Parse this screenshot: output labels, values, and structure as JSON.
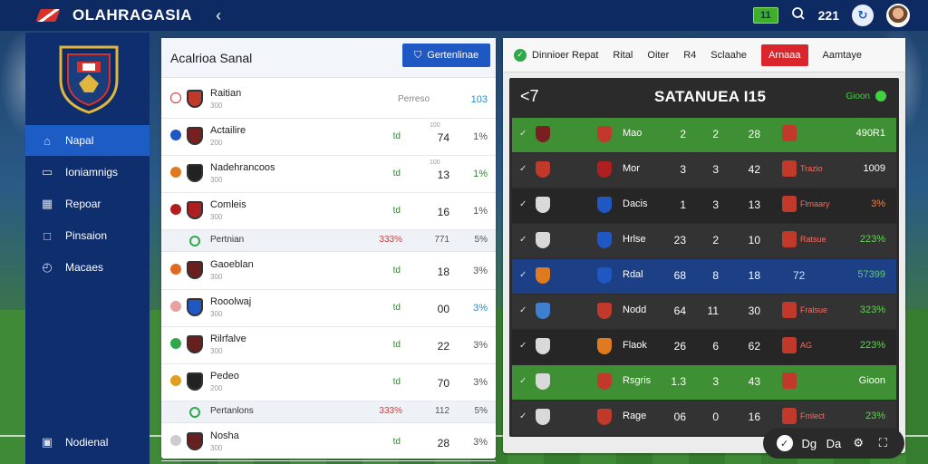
{
  "header": {
    "app_title": "OLAHRAGASIA",
    "back_glyph": "‹",
    "badge": "11",
    "search_icon": "search-icon",
    "count": "221"
  },
  "sidebar": {
    "items": [
      {
        "label": "Napal",
        "icon": "home-icon",
        "active": true
      },
      {
        "label": "Ioniamnigs",
        "icon": "window-icon"
      },
      {
        "label": "Repoar",
        "icon": "grid-icon"
      },
      {
        "label": "Pinsaion",
        "icon": "square-icon"
      },
      {
        "label": "Macaes",
        "icon": "globe-icon"
      }
    ],
    "bottom_item": {
      "label": "Nodienal",
      "icon": "settings-icon"
    }
  },
  "middle": {
    "title": "Acalrioa Sanal",
    "button_label": "Gertenlinae",
    "rows": [
      {
        "name": "Raitian",
        "sub": "300",
        "c1": "",
        "c2top": "",
        "c2": "Perreso",
        "c3": "103",
        "flag": "#ffffff",
        "crest": "#c0392b",
        "c3color": "#2b8ac2"
      },
      {
        "name": "Actailire",
        "sub": "200",
        "c1": "td",
        "c2top": "100",
        "c2": "74",
        "c3": "1%",
        "flag": "#1f57c3",
        "crest": "#7a1f1f"
      },
      {
        "name": "Nadehrancoos",
        "sub": "300",
        "c1": "td",
        "c2top": "100",
        "c2": "13",
        "c3": "1%",
        "flag": "#e07a1f",
        "crest": "#222222",
        "c3color": "#2a8a2a"
      },
      {
        "name": "Comleis",
        "sub": "300",
        "c1": "td",
        "c2top": "",
        "c2": "16",
        "c3": "1%",
        "flag": "#b01f1f",
        "crest": "#b01f1f"
      },
      {
        "name": "Gaoeblan",
        "sub": "300",
        "c1": "td",
        "c2top": "",
        "c2": "18",
        "c3": "3%",
        "flag": "#e06a1f",
        "crest": "#6a1f1f"
      },
      {
        "name": "Rooolwaj",
        "sub": "300",
        "c1": "td",
        "c2top": "",
        "c2": "00",
        "c3": "3%",
        "flag": "#e8a0a0",
        "crest": "#1f57c3",
        "c3color": "#2b8ac2"
      },
      {
        "name": "Rilrfalve",
        "sub": "300",
        "c1": "td",
        "c2top": "",
        "c2": "22",
        "c3": "3%",
        "flag": "#2fa84a",
        "crest": "#6a1f1f"
      },
      {
        "name": "Pedeo",
        "sub": "200",
        "c1": "td",
        "c2top": "",
        "c2": "70",
        "c3": "3%",
        "flag": "#e0a01f",
        "crest": "#222222"
      },
      {
        "name": "Nosha",
        "sub": "300",
        "c1": "td",
        "c2top": "",
        "c2": "28",
        "c3": "3%",
        "flag": "#cccccc",
        "crest": "#6a1f1f"
      }
    ],
    "separators": [
      {
        "label": "Pertnian",
        "red": "333%",
        "g": "771",
        "g2": "5%"
      },
      {
        "label": "Pertanlons",
        "red": "333%",
        "g": "112",
        "g2": "5%"
      }
    ]
  },
  "right": {
    "tabs": [
      {
        "label": "Dinnioer Repat",
        "check": true
      },
      {
        "label": "Rital"
      },
      {
        "label": "Oiter"
      },
      {
        "label": "R4"
      },
      {
        "label": "Sclaahe"
      },
      {
        "label": "Arnaaa",
        "red": true
      },
      {
        "label": "Aamtaye"
      }
    ],
    "table_title": "SATANUEA I15",
    "table_status": "Gioon",
    "back_glyph": "<7",
    "rows": [
      {
        "style": "green",
        "l1": "#7a1f1f",
        "l2": "#c0392b",
        "name": "Mao",
        "v1": "2",
        "v2": "2",
        "v3": "28",
        "rbox": "#c0392b",
        "rlab": "",
        "last": "490R1",
        "lastc": "w"
      },
      {
        "style": "dark",
        "l1": "#c0392b",
        "l2": "#b01f1f",
        "name": "Mor",
        "v1": "3",
        "v2": "3",
        "v3": "42",
        "rbox": "#c0392b",
        "rlab": "Trazio",
        "last": "1009",
        "lastc": "w"
      },
      {
        "style": "darker",
        "l1": "#d9d9d9",
        "l2": "#1f57c3",
        "name": "Dacis",
        "v1": "1",
        "v2": "3",
        "v3": "13",
        "rbox": "#c0392b",
        "rlab": "Flmaary",
        "last": "3%",
        "lastc": "o"
      },
      {
        "style": "dark",
        "l1": "#d9d9d9",
        "l2": "#1f57c3",
        "name": "Hrlse",
        "v1": "23",
        "v2": "2",
        "v3": "10",
        "rbox": "#c0392b",
        "rlab": "Ratsue",
        "last": "223%",
        "lastc": "g"
      },
      {
        "style": "blue",
        "l1": "#e07a1f",
        "l2": "#1f57c3",
        "name": "Rdal",
        "v1": "68",
        "v2": "8",
        "v3": "18",
        "rbox": "",
        "rlab": "",
        "mid": "72",
        "last": "57399",
        "lastc": "g"
      },
      {
        "style": "dark",
        "l1": "#3f7fd0",
        "l2": "#c0392b",
        "name": "Nodd",
        "v1": "64",
        "v2": "11",
        "v3": "30",
        "rbox": "#c0392b",
        "rlab": "Fralsue",
        "last": "323%",
        "lastc": "g"
      },
      {
        "style": "darker",
        "l1": "#d9d9d9",
        "l2": "#e07a1f",
        "name": "Flaok",
        "v1": "26",
        "v2": "6",
        "v3": "62",
        "rbox": "#c0392b",
        "rlab": "AG",
        "last": "223%",
        "lastc": "g"
      },
      {
        "style": "green",
        "l1": "#d9d9d9",
        "l2": "#c0392b",
        "name": "Rsgris",
        "v1": "1.3",
        "v2": "3",
        "v3": "43",
        "rbox": "#c0392b",
        "rlab": "",
        "last": "Gioon",
        "lastc": "w"
      },
      {
        "style": "dark",
        "l1": "#d9d9d9",
        "l2": "#c0392b",
        "name": "Rage",
        "v1": "06",
        "v2": "0",
        "v3": "16",
        "rbox": "#c0392b",
        "rlab": "Fmlect",
        "last": "23%",
        "lastc": "g"
      }
    ]
  },
  "toolbar": {
    "items": [
      "check-icon",
      "Dd",
      "Da",
      "gear-icon",
      "expand-icon"
    ],
    "labels": {
      "i2": "Dɡ",
      "i3": "Da"
    }
  }
}
